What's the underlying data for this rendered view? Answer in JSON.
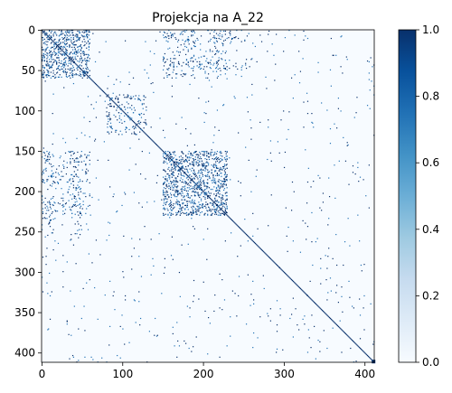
{
  "chart_data": {
    "type": "heatmap",
    "title": "Projekcja na A_22",
    "matrix_size": 412,
    "value_range": [
      0.0,
      1.0
    ],
    "colormap": "Blues",
    "x_ticks": [
      0,
      100,
      200,
      300,
      400
    ],
    "y_ticks": [
      0,
      50,
      100,
      150,
      200,
      250,
      300,
      350,
      400
    ],
    "colorbar_ticks": [
      "0.0",
      "0.2",
      "0.4",
      "0.6",
      "0.8",
      "1.0"
    ],
    "diagonal_value": 1.0,
    "last_diagonal_value": 1.0,
    "sparse_blocks": [
      {
        "rows": [
          0,
          60
        ],
        "cols": [
          0,
          60
        ],
        "density": 0.08
      },
      {
        "rows": [
          0,
          15
        ],
        "cols": [
          150,
          260
        ],
        "density": 0.03
      },
      {
        "rows": [
          35,
          50
        ],
        "cols": [
          150,
          260
        ],
        "density": 0.03
      },
      {
        "rows": [
          150,
          230
        ],
        "cols": [
          150,
          230
        ],
        "density": 0.08
      },
      {
        "rows": [
          150,
          230
        ],
        "cols": [
          0,
          60
        ],
        "density": 0.04
      },
      {
        "rows": [
          80,
          130
        ],
        "cols": [
          80,
          130
        ],
        "density": 0.03
      },
      {
        "rows": [
          0,
          412
        ],
        "cols": [
          0,
          412
        ],
        "density": 0.002
      }
    ]
  }
}
